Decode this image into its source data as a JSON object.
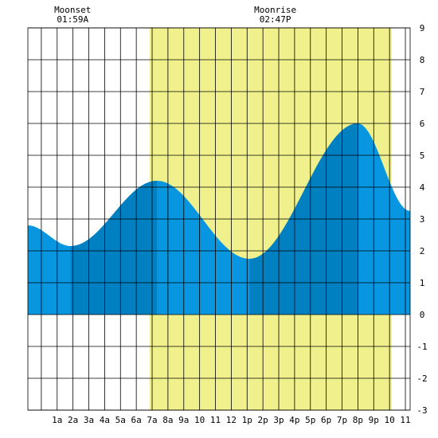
{
  "chart_data": {
    "type": "area",
    "title": "",
    "xlabel": "",
    "ylabel": "",
    "x_unit": "hours since midnight",
    "xlim": [
      -0.85,
      23.3
    ],
    "ylim": [
      -3,
      9
    ],
    "y_ticks": [
      -3,
      -2,
      -1,
      0,
      1,
      2,
      3,
      4,
      5,
      6,
      7,
      8,
      9
    ],
    "x_tick_labels": [
      "1a",
      "2a",
      "3a",
      "4a",
      "5a",
      "6a",
      "7a",
      "8a",
      "9a",
      "10",
      "11",
      "12",
      "1p",
      "2p",
      "3p",
      "4p",
      "5p",
      "6p",
      "7p",
      "8p",
      "9p",
      "10",
      "11"
    ],
    "daylight": {
      "start": 6.83,
      "end": 22.13,
      "color": "#f0f08c"
    },
    "annotations": [
      {
        "label": "Moonset",
        "time": "01:59A",
        "hour": 1.98
      },
      {
        "label": "Moonrise",
        "time": "02:47P",
        "hour": 14.78
      }
    ],
    "tide_extremes": [
      {
        "hour": 1.85,
        "height": 2.15,
        "type": "low"
      },
      {
        "hour": 7.3,
        "height": 4.2,
        "type": "high"
      },
      {
        "hour": 13.15,
        "height": 1.75,
        "type": "low"
      },
      {
        "hour": 20.0,
        "height": 6.0,
        "type": "high"
      }
    ],
    "series": [
      {
        "x": [
          -0.85,
          1.85,
          7.3,
          13.15,
          20.0,
          23.3
        ],
        "values": [
          2.8,
          2.15,
          4.2,
          1.75,
          6.0,
          3.25
        ],
        "color": "#0896e0",
        "dark_band_color": "#0080c0"
      }
    ]
  }
}
